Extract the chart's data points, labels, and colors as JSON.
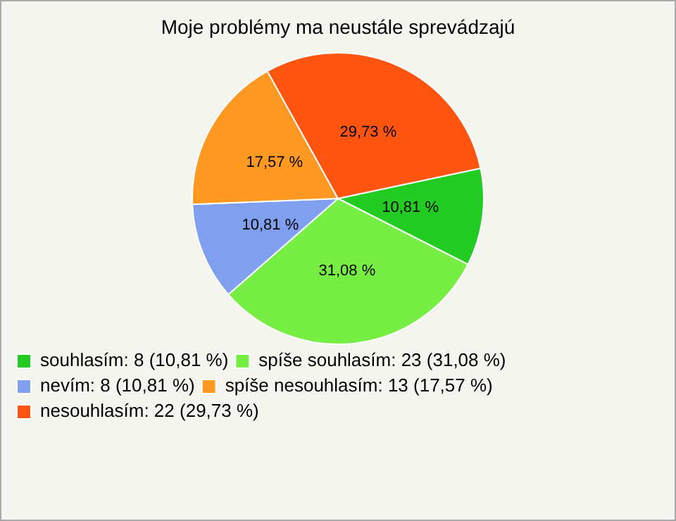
{
  "chart_data": {
    "type": "pie",
    "title": "Moje problémy ma neustále sprevádzajú",
    "categories": [
      "souhlasím: 8 (10,81 %)",
      "spíše souhlasím: 23 (31,08 %)",
      "nevím: 8 (10,81 %)",
      "spíše nesouhlasím: 13 (17,57 %)",
      "nesouhlasím: 22 (29,73 %)"
    ],
    "values": [
      10.81,
      31.08,
      10.81,
      17.57,
      29.73
    ],
    "value_labels": [
      "10,81 %",
      "31,08 %",
      "10,81 %",
      "17,57 %",
      "29,73 %"
    ],
    "colors": [
      "#22cc22",
      "#77ee44",
      "#7f9fef",
      "#ff9922",
      "#ff5511"
    ],
    "legend": "bottom left"
  }
}
